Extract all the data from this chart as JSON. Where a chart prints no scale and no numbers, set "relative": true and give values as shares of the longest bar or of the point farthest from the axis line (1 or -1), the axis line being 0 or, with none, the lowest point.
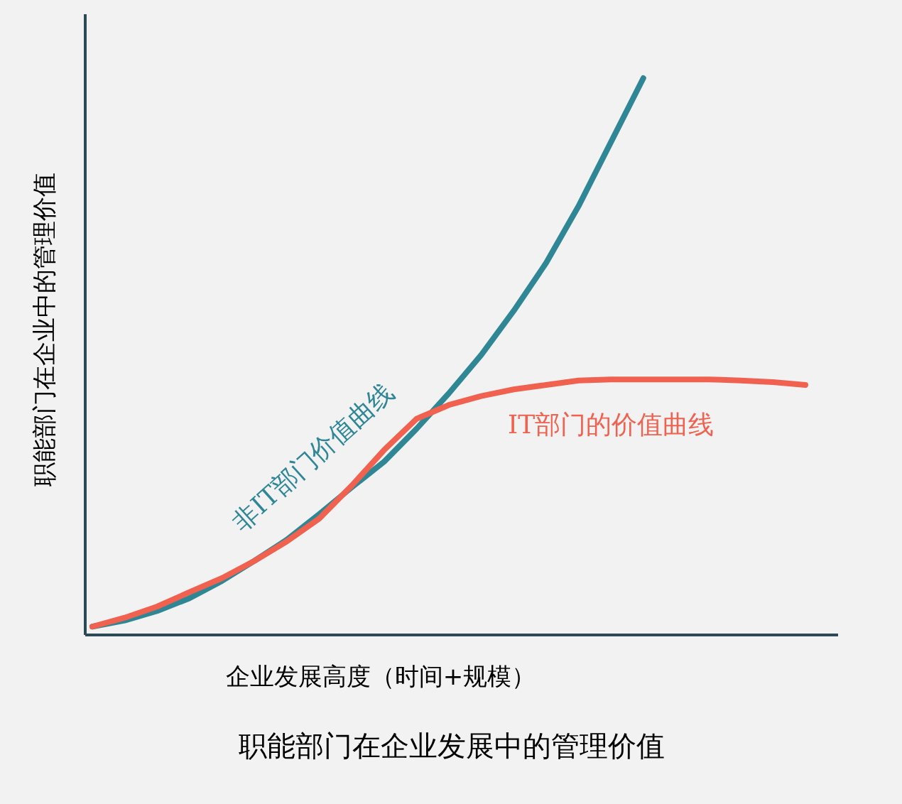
{
  "chart_data": {
    "type": "line",
    "relative": true,
    "title": "职能部门在企业发展中的管理价值",
    "xlabel": "企业发展高度（时间+规模）",
    "ylabel": "职能部门在企业中的管理价值",
    "categories": [
      null,
      null,
      null,
      null,
      null,
      null,
      null,
      null,
      null,
      null,
      null,
      null,
      null,
      null,
      null,
      null,
      null,
      null,
      null,
      null,
      null,
      null,
      null
    ],
    "series": [
      {
        "name": "非IT部门价值曲线",
        "color": "#2f8796",
        "values": [
          0.015,
          0.026,
          0.043,
          0.066,
          0.097,
          0.133,
          0.171,
          0.217,
          0.265,
          0.311,
          0.37,
          0.434,
          0.503,
          0.582,
          0.668,
          0.77,
          0.885,
          1,
          null,
          null,
          null,
          null,
          null
        ]
      },
      {
        "name": "IT部门的价值曲线",
        "color": "#f0624f",
        "values": [
          0.015,
          0.031,
          0.051,
          0.077,
          0.102,
          0.133,
          0.168,
          0.209,
          0.268,
          0.332,
          0.388,
          0.413,
          0.429,
          0.441,
          0.449,
          0.457,
          0.459,
          0.459,
          0.459,
          0.459,
          0.457,
          0.454,
          0.449
        ]
      }
    ]
  }
}
